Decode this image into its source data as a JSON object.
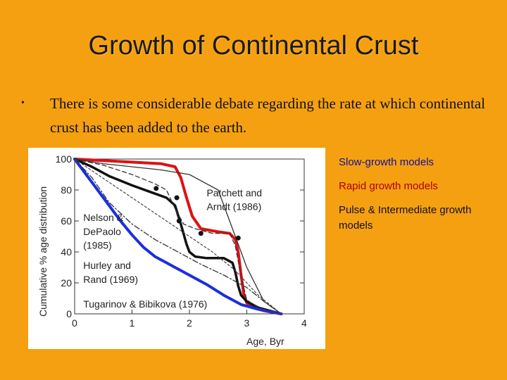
{
  "slide": {
    "title": "Growth of Continental Crust",
    "bullet_symbol": "•",
    "bullet_text": "There is some considerable debate regarding the rate at which continental crust has been added to the earth."
  },
  "legend": {
    "slow": "Slow-growth models",
    "rapid": "Rapid growth models",
    "pulse": "Pulse & Intermediate growth models",
    "colors": {
      "slow": "#1010a0",
      "rapid": "#b00000",
      "pulse": "#111111"
    }
  },
  "chart_data": {
    "type": "line",
    "xlabel": "Age, Byr",
    "ylabel": "Cumulative % age distribution",
    "xlim": [
      0,
      4
    ],
    "ylim": [
      0,
      100
    ],
    "x_ticks": [
      0,
      1,
      2,
      3,
      4
    ],
    "y_ticks": [
      0,
      20,
      40,
      60,
      80,
      100
    ],
    "annotations": [
      {
        "text": "Patchett and",
        "x": 2.3,
        "y": 76
      },
      {
        "text": "Arndt (1986)",
        "x": 2.3,
        "y": 67
      },
      {
        "text": "Nelson &",
        "x": 0.15,
        "y": 60
      },
      {
        "text": "DePaolo",
        "x": 0.15,
        "y": 51
      },
      {
        "text": "(1985)",
        "x": 0.15,
        "y": 42
      },
      {
        "text": "Hurley and",
        "x": 0.15,
        "y": 29
      },
      {
        "text": "Rand (1969)",
        "x": 0.15,
        "y": 20
      },
      {
        "text": "Tugarinov & Bibikova (1976)",
        "x": 0.15,
        "y": 4
      }
    ],
    "series": [
      {
        "color": "#dd1111",
        "width": 4,
        "dash": "",
        "x": [
          0,
          0.5,
          1.0,
          1.5,
          1.75,
          1.85,
          1.95,
          2.05,
          2.2,
          2.5,
          2.7,
          2.8,
          2.85,
          2.9,
          2.95,
          3.0,
          3.1,
          3.3,
          3.6
        ],
        "y": [
          100,
          99,
          98,
          97,
          95,
          88,
          75,
          63,
          55,
          53,
          52,
          48,
          40,
          25,
          12,
          7,
          4,
          2,
          0
        ]
      },
      {
        "color": "#111111",
        "width": 3.5,
        "dash": "",
        "x": [
          0,
          0.3,
          0.6,
          1.0,
          1.3,
          1.6,
          1.75,
          1.85,
          1.95,
          2.0,
          2.1,
          2.3,
          2.6,
          2.75,
          2.8,
          2.85,
          2.9,
          3.0,
          3.2,
          3.6
        ],
        "y": [
          100,
          95,
          89,
          83,
          79,
          75,
          70,
          58,
          45,
          40,
          37,
          36,
          36,
          33,
          27,
          18,
          12,
          8,
          4,
          0
        ]
      },
      {
        "color": "#1a2ee0",
        "width": 4,
        "dash": "",
        "x": [
          0,
          0.2,
          0.5,
          0.8,
          1.0,
          1.2,
          1.4,
          1.6,
          1.8,
          2.0,
          2.3,
          2.6,
          2.9,
          3.2,
          3.6
        ],
        "y": [
          100,
          90,
          75,
          60,
          51,
          43,
          37,
          33,
          29,
          25,
          19,
          12,
          6,
          3,
          0
        ]
      },
      {
        "color": "#333333",
        "width": 1.3,
        "dash": "6,4",
        "x": [
          0,
          0.5,
          1.0,
          1.4,
          1.6,
          1.75,
          1.9,
          2.1,
          2.4,
          2.7,
          2.8,
          2.9,
          3.0,
          3.2,
          3.6
        ],
        "y": [
          100,
          96,
          90,
          84,
          80,
          68,
          58,
          55,
          52,
          52,
          44,
          24,
          9,
          4,
          0
        ]
      },
      {
        "color": "#333333",
        "width": 1.3,
        "dash": "8,3,2,3",
        "x": [
          0,
          0.3,
          0.6,
          1.0,
          1.4,
          1.8,
          2.2,
          2.6,
          3.0,
          3.3,
          3.6
        ],
        "y": [
          100,
          88,
          72,
          58,
          48,
          40,
          32,
          25,
          17,
          8,
          0
        ]
      },
      {
        "color": "#333333",
        "width": 1.3,
        "dash": "",
        "x": [
          0,
          0.5,
          1.0,
          1.5,
          2.0,
          2.5,
          3.0,
          3.3,
          3.6
        ],
        "y": [
          100,
          97,
          95,
          93,
          90,
          80,
          30,
          8,
          0
        ]
      },
      {
        "color": "#444444",
        "width": 1.2,
        "dash": "3,3",
        "x": [
          0,
          0.4,
          0.8,
          1.2,
          1.6,
          2.0,
          2.4,
          2.8,
          3.2,
          3.6
        ],
        "y": [
          100,
          90,
          80,
          70,
          60,
          50,
          40,
          28,
          12,
          0
        ]
      }
    ],
    "markers": [
      {
        "x": 1.42,
        "y": 81
      },
      {
        "x": 1.78,
        "y": 75
      },
      {
        "x": 1.82,
        "y": 60
      },
      {
        "x": 2.2,
        "y": 52
      },
      {
        "x": 2.85,
        "y": 49
      }
    ]
  }
}
